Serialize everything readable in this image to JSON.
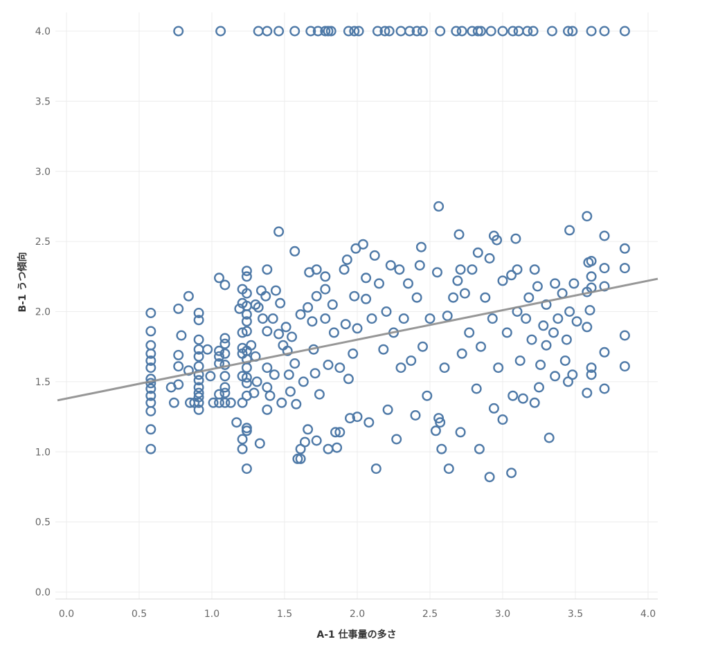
{
  "chart_data": {
    "type": "scatter",
    "title": "",
    "xlabel": "A-1 仕事量の多さ",
    "ylabel": "B-1 うつ傾向",
    "xlim": [
      -0.05,
      4.05
    ],
    "ylim": [
      -0.05,
      4.05
    ],
    "xticks": [
      "0.0",
      "0.5",
      "1.0",
      "1.5",
      "2.0",
      "2.5",
      "3.0",
      "3.5",
      "4.0"
    ],
    "yticks": [
      "0.0",
      "0.5",
      "1.0",
      "1.5",
      "2.0",
      "2.5",
      "3.0",
      "3.5",
      "4.0"
    ],
    "grid": true,
    "marker": "hollow-circle",
    "point_color": "#4e79a7",
    "trend_color": "#8c8c8c",
    "trend_line": {
      "intercept": 1.38,
      "slope": 0.21
    },
    "series": [
      {
        "points": [
          [
            0.77,
            4.0
          ],
          [
            1.06,
            4.0
          ],
          [
            1.32,
            4.0
          ],
          [
            1.38,
            4.0
          ],
          [
            1.46,
            4.0
          ],
          [
            1.57,
            4.0
          ],
          [
            1.68,
            4.0
          ],
          [
            1.73,
            4.0
          ],
          [
            1.78,
            4.0
          ],
          [
            1.8,
            4.0
          ],
          [
            1.82,
            4.0
          ],
          [
            1.94,
            4.0
          ],
          [
            1.98,
            4.0
          ],
          [
            2.01,
            4.0
          ],
          [
            2.14,
            4.0
          ],
          [
            2.19,
            4.0
          ],
          [
            2.22,
            4.0
          ],
          [
            2.3,
            4.0
          ],
          [
            2.36,
            4.0
          ],
          [
            2.41,
            4.0
          ],
          [
            2.45,
            4.0
          ],
          [
            2.57,
            4.0
          ],
          [
            2.68,
            4.0
          ],
          [
            2.72,
            4.0
          ],
          [
            2.79,
            4.0
          ],
          [
            2.83,
            4.0
          ],
          [
            2.85,
            4.0
          ],
          [
            2.92,
            4.0
          ],
          [
            3.0,
            4.0
          ],
          [
            3.07,
            4.0
          ],
          [
            3.11,
            4.0
          ],
          [
            3.17,
            4.0
          ],
          [
            3.21,
            4.0
          ],
          [
            3.34,
            4.0
          ],
          [
            3.45,
            4.0
          ],
          [
            3.48,
            4.0
          ],
          [
            3.61,
            4.0
          ],
          [
            3.7,
            4.0
          ],
          [
            3.84,
            4.0
          ],
          [
            0.58,
            1.99
          ],
          [
            0.58,
            1.86
          ],
          [
            0.58,
            1.76
          ],
          [
            0.58,
            1.7
          ],
          [
            0.58,
            1.65
          ],
          [
            0.58,
            1.6
          ],
          [
            0.58,
            1.52
          ],
          [
            0.58,
            1.49
          ],
          [
            0.58,
            1.45
          ],
          [
            0.58,
            1.4
          ],
          [
            0.58,
            1.35
          ],
          [
            0.58,
            1.29
          ],
          [
            0.58,
            1.16
          ],
          [
            0.58,
            1.02
          ],
          [
            0.72,
            1.46
          ],
          [
            0.74,
            1.35
          ],
          [
            0.77,
            2.02
          ],
          [
            0.77,
            1.69
          ],
          [
            0.77,
            1.61
          ],
          [
            0.77,
            1.48
          ],
          [
            0.79,
            1.83
          ],
          [
            0.84,
            2.11
          ],
          [
            0.84,
            1.58
          ],
          [
            0.85,
            1.35
          ],
          [
            0.88,
            1.35
          ],
          [
            0.91,
            1.99
          ],
          [
            0.91,
            1.94
          ],
          [
            0.91,
            1.8
          ],
          [
            0.91,
            1.73
          ],
          [
            0.91,
            1.68
          ],
          [
            0.91,
            1.61
          ],
          [
            0.91,
            1.55
          ],
          [
            0.91,
            1.51
          ],
          [
            0.91,
            1.46
          ],
          [
            0.91,
            1.42
          ],
          [
            0.91,
            1.39
          ],
          [
            0.91,
            1.35
          ],
          [
            0.91,
            1.3
          ],
          [
            0.97,
            1.73
          ],
          [
            0.99,
            1.54
          ],
          [
            1.01,
            1.35
          ],
          [
            1.05,
            2.24
          ],
          [
            1.05,
            1.72
          ],
          [
            1.05,
            1.68
          ],
          [
            1.05,
            1.63
          ],
          [
            1.05,
            1.41
          ],
          [
            1.05,
            1.35
          ],
          [
            1.09,
            2.19
          ],
          [
            1.09,
            1.81
          ],
          [
            1.09,
            1.77
          ],
          [
            1.09,
            1.7
          ],
          [
            1.09,
            1.62
          ],
          [
            1.09,
            1.54
          ],
          [
            1.09,
            1.46
          ],
          [
            1.09,
            1.42
          ],
          [
            1.09,
            1.35
          ],
          [
            1.13,
            1.35
          ],
          [
            1.19,
            2.02
          ],
          [
            1.17,
            1.21
          ],
          [
            1.21,
            2.16
          ],
          [
            1.21,
            2.06
          ],
          [
            1.21,
            1.85
          ],
          [
            1.21,
            1.74
          ],
          [
            1.21,
            1.7
          ],
          [
            1.21,
            1.54
          ],
          [
            1.21,
            1.35
          ],
          [
            1.21,
            1.09
          ],
          [
            1.21,
            1.02
          ],
          [
            1.24,
            2.29
          ],
          [
            1.24,
            2.25
          ],
          [
            1.24,
            2.13
          ],
          [
            1.24,
            2.04
          ],
          [
            1.24,
            1.98
          ],
          [
            1.24,
            1.93
          ],
          [
            1.24,
            1.86
          ],
          [
            1.24,
            1.72
          ],
          [
            1.24,
            1.66
          ],
          [
            1.24,
            1.6
          ],
          [
            1.24,
            1.53
          ],
          [
            1.24,
            1.49
          ],
          [
            1.24,
            1.4
          ],
          [
            1.24,
            1.17
          ],
          [
            1.24,
            1.15
          ],
          [
            1.24,
            0.88
          ],
          [
            1.27,
            1.76
          ],
          [
            1.29,
            1.42
          ],
          [
            1.3,
            2.05
          ],
          [
            1.3,
            1.68
          ],
          [
            1.31,
            1.5
          ],
          [
            1.32,
            2.03
          ],
          [
            1.33,
            1.06
          ],
          [
            1.34,
            2.15
          ],
          [
            1.35,
            1.95
          ],
          [
            1.37,
            2.11
          ],
          [
            1.38,
            2.3
          ],
          [
            1.38,
            1.86
          ],
          [
            1.38,
            1.6
          ],
          [
            1.38,
            1.46
          ],
          [
            1.38,
            1.3
          ],
          [
            1.4,
            1.4
          ],
          [
            1.42,
            1.95
          ],
          [
            1.43,
            1.55
          ],
          [
            1.44,
            2.15
          ],
          [
            1.46,
            2.57
          ],
          [
            1.46,
            1.84
          ],
          [
            1.47,
            2.06
          ],
          [
            1.48,
            1.35
          ],
          [
            1.49,
            1.76
          ],
          [
            1.51,
            1.89
          ],
          [
            1.52,
            1.72
          ],
          [
            1.53,
            1.55
          ],
          [
            1.54,
            1.43
          ],
          [
            1.55,
            1.82
          ],
          [
            1.57,
            2.43
          ],
          [
            1.57,
            1.63
          ],
          [
            1.58,
            1.34
          ],
          [
            1.59,
            0.95
          ],
          [
            1.61,
            1.98
          ],
          [
            1.61,
            0.95
          ],
          [
            1.61,
            1.02
          ],
          [
            1.63,
            1.5
          ],
          [
            1.64,
            1.07
          ],
          [
            1.66,
            2.03
          ],
          [
            1.66,
            1.16
          ],
          [
            1.67,
            2.28
          ],
          [
            1.69,
            1.93
          ],
          [
            1.7,
            1.73
          ],
          [
            1.71,
            1.56
          ],
          [
            1.72,
            2.3
          ],
          [
            1.72,
            2.11
          ],
          [
            1.72,
            1.08
          ],
          [
            1.74,
            1.41
          ],
          [
            1.78,
            2.25
          ],
          [
            1.78,
            2.16
          ],
          [
            1.78,
            1.95
          ],
          [
            1.8,
            1.62
          ],
          [
            1.8,
            1.02
          ],
          [
            1.83,
            2.05
          ],
          [
            1.84,
            1.85
          ],
          [
            1.85,
            1.14
          ],
          [
            1.86,
            1.03
          ],
          [
            1.88,
            1.6
          ],
          [
            1.88,
            1.14
          ],
          [
            1.91,
            2.3
          ],
          [
            1.92,
            1.91
          ],
          [
            1.93,
            2.37
          ],
          [
            1.94,
            1.52
          ],
          [
            1.95,
            1.24
          ],
          [
            1.97,
            1.7
          ],
          [
            1.98,
            2.11
          ],
          [
            1.99,
            2.45
          ],
          [
            2.0,
            1.88
          ],
          [
            2.0,
            1.25
          ],
          [
            2.04,
            2.48
          ],
          [
            2.06,
            2.24
          ],
          [
            2.06,
            2.09
          ],
          [
            2.08,
            1.21
          ],
          [
            2.1,
            1.95
          ],
          [
            2.12,
            2.4
          ],
          [
            2.13,
            0.88
          ],
          [
            2.15,
            2.2
          ],
          [
            2.18,
            1.73
          ],
          [
            2.2,
            2.0
          ],
          [
            2.21,
            1.3
          ],
          [
            2.23,
            2.33
          ],
          [
            2.25,
            1.85
          ],
          [
            2.27,
            1.09
          ],
          [
            2.29,
            2.3
          ],
          [
            2.3,
            1.6
          ],
          [
            2.32,
            1.95
          ],
          [
            2.35,
            2.2
          ],
          [
            2.37,
            1.65
          ],
          [
            2.4,
            1.26
          ],
          [
            2.41,
            2.1
          ],
          [
            2.43,
            2.33
          ],
          [
            2.44,
            2.46
          ],
          [
            2.45,
            1.75
          ],
          [
            2.48,
            1.4
          ],
          [
            2.5,
            1.95
          ],
          [
            2.54,
            1.15
          ],
          [
            2.55,
            2.28
          ],
          [
            2.56,
            2.75
          ],
          [
            2.56,
            1.24
          ],
          [
            2.57,
            1.21
          ],
          [
            2.58,
            1.02
          ],
          [
            2.6,
            1.6
          ],
          [
            2.62,
            1.97
          ],
          [
            2.63,
            0.88
          ],
          [
            2.66,
            2.1
          ],
          [
            2.69,
            2.22
          ],
          [
            2.7,
            2.55
          ],
          [
            2.71,
            2.3
          ],
          [
            2.71,
            1.14
          ],
          [
            2.72,
            1.7
          ],
          [
            2.74,
            2.13
          ],
          [
            2.77,
            1.85
          ],
          [
            2.79,
            2.3
          ],
          [
            2.82,
            1.45
          ],
          [
            2.83,
            2.42
          ],
          [
            2.84,
            1.02
          ],
          [
            2.85,
            1.75
          ],
          [
            2.88,
            2.1
          ],
          [
            2.91,
            0.82
          ],
          [
            2.91,
            2.38
          ],
          [
            2.93,
            1.95
          ],
          [
            2.94,
            2.54
          ],
          [
            2.94,
            1.31
          ],
          [
            2.96,
            2.51
          ],
          [
            2.97,
            1.6
          ],
          [
            3.0,
            2.22
          ],
          [
            3.0,
            1.23
          ],
          [
            3.03,
            1.85
          ],
          [
            3.06,
            2.26
          ],
          [
            3.06,
            0.85
          ],
          [
            3.07,
            1.4
          ],
          [
            3.09,
            2.52
          ],
          [
            3.1,
            2.3
          ],
          [
            3.1,
            2.0
          ],
          [
            3.12,
            1.65
          ],
          [
            3.14,
            1.38
          ],
          [
            3.16,
            1.95
          ],
          [
            3.18,
            2.1
          ],
          [
            3.2,
            1.8
          ],
          [
            3.22,
            2.3
          ],
          [
            3.22,
            1.35
          ],
          [
            3.24,
            2.18
          ],
          [
            3.25,
            1.46
          ],
          [
            3.26,
            1.62
          ],
          [
            3.28,
            1.9
          ],
          [
            3.3,
            2.05
          ],
          [
            3.3,
            1.76
          ],
          [
            3.32,
            1.1
          ],
          [
            3.35,
            1.85
          ],
          [
            3.36,
            2.2
          ],
          [
            3.36,
            1.54
          ],
          [
            3.38,
            1.95
          ],
          [
            3.41,
            2.13
          ],
          [
            3.43,
            1.65
          ],
          [
            3.44,
            1.8
          ],
          [
            3.45,
            1.5
          ],
          [
            3.46,
            2.58
          ],
          [
            3.46,
            2.0
          ],
          [
            3.48,
            1.55
          ],
          [
            3.49,
            2.2
          ],
          [
            3.51,
            1.93
          ],
          [
            3.58,
            2.68
          ],
          [
            3.58,
            2.14
          ],
          [
            3.58,
            1.89
          ],
          [
            3.58,
            1.42
          ],
          [
            3.59,
            2.35
          ],
          [
            3.6,
            2.01
          ],
          [
            3.61,
            2.36
          ],
          [
            3.61,
            2.25
          ],
          [
            3.61,
            2.17
          ],
          [
            3.61,
            1.6
          ],
          [
            3.61,
            1.55
          ],
          [
            3.7,
            2.54
          ],
          [
            3.7,
            2.31
          ],
          [
            3.7,
            2.18
          ],
          [
            3.7,
            1.71
          ],
          [
            3.7,
            1.45
          ],
          [
            3.84,
            2.45
          ],
          [
            3.84,
            2.31
          ],
          [
            3.84,
            1.83
          ],
          [
            3.84,
            1.61
          ]
        ]
      }
    ]
  }
}
